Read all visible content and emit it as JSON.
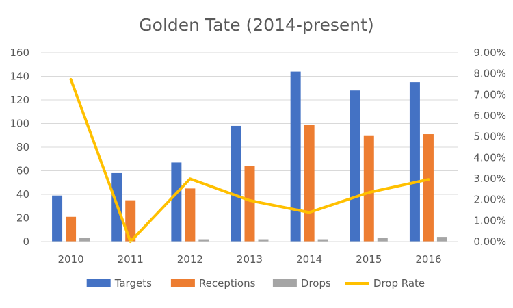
{
  "chart_data": {
    "type": "bar",
    "title": "Golden Tate (2014-present)",
    "categories": [
      "2010",
      "2011",
      "2012",
      "2013",
      "2014",
      "2015",
      "2016"
    ],
    "series": [
      {
        "name": "Targets",
        "type": "bar",
        "axis": "left",
        "color": "#4472C4",
        "values": [
          39,
          58,
          67,
          98,
          144,
          128,
          135
        ]
      },
      {
        "name": "Receptions",
        "type": "bar",
        "axis": "left",
        "color": "#ED7D31",
        "values": [
          21,
          35,
          45,
          64,
          99,
          90,
          91
        ]
      },
      {
        "name": "Drops",
        "type": "bar",
        "axis": "left",
        "color": "#A5A5A5",
        "values": [
          3,
          0,
          2,
          2,
          2,
          3,
          4
        ]
      },
      {
        "name": "Drop Rate",
        "type": "line",
        "axis": "right",
        "color": "#FFC000",
        "values": [
          0.0773,
          0.0,
          0.0299,
          0.0196,
          0.0139,
          0.0234,
          0.0296
        ]
      }
    ],
    "y_left": {
      "min": 0,
      "max": 160,
      "ticks": [
        "0",
        "20",
        "40",
        "60",
        "80",
        "100",
        "120",
        "140",
        "160"
      ]
    },
    "y_right": {
      "min": 0,
      "max": 0.09,
      "ticks": [
        "0.00%",
        "1.00%",
        "2.00%",
        "3.00%",
        "4.00%",
        "5.00%",
        "6.00%",
        "7.00%",
        "8.00%",
        "9.00%"
      ]
    },
    "grid": true,
    "legend_position": "bottom"
  }
}
